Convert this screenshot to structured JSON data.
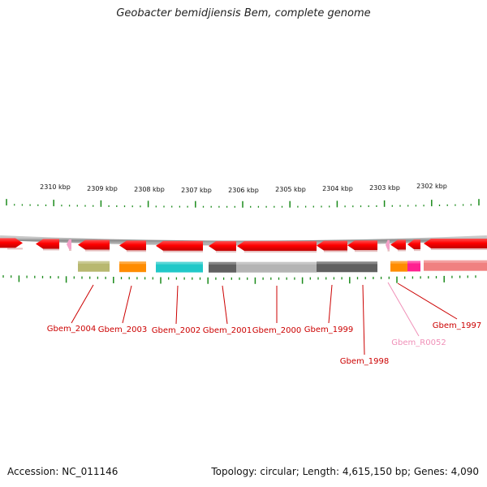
{
  "title": "Geobacter bemidjiensis Bem, complete genome",
  "footer": {
    "accession": "Accession: NC_011146",
    "stats": "Topology: circular; Length: 4,615,150 bp; Genes: 4,090"
  },
  "colors": {
    "gene": "#ff0000",
    "rna": "#f4a0c8",
    "tick": "#1a8a1a",
    "backbone": "#909090",
    "label": "#cc0000",
    "rna_label": "#f090b8"
  },
  "scale_labels": [
    "2310 kbp",
    "2309 kbp",
    "2308 kbp",
    "2307 kbp",
    "2306 kbp",
    "2305 kbp",
    "2304 kbp",
    "2303 kbp",
    "2302 kbp"
  ],
  "gene_labels": [
    "Gbem_2004",
    "Gbem_2003",
    "Gbem_2002",
    "Gbem_2001",
    "Gbem_2000",
    "Gbem_1999",
    "Gbem_1998",
    "Gbem_R0052",
    "Gbem_1997"
  ],
  "category_colors": [
    "#b8b870",
    "#ff8c00",
    "#20c8c8",
    "#606060",
    "#b4b4b4",
    "#606060",
    "#ff8c00",
    "#ff2090",
    "#f08080"
  ]
}
